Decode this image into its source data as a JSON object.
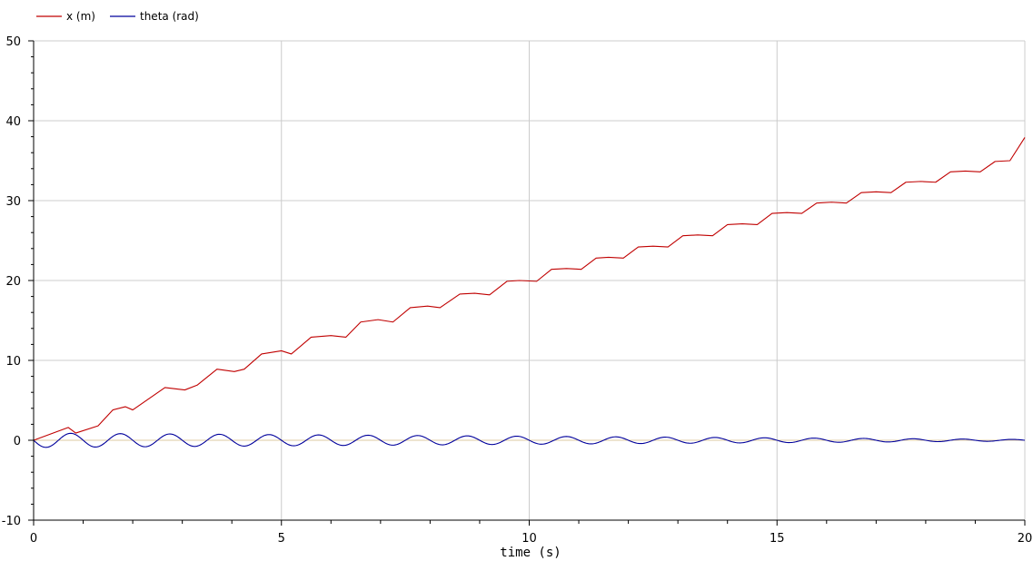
{
  "chart_data": {
    "type": "line",
    "title": "",
    "xlabel": "time (s)",
    "ylabel": "",
    "xlim": [
      0,
      20
    ],
    "ylim": [
      -10,
      50
    ],
    "x_ticks": [
      0,
      5,
      10,
      15,
      20
    ],
    "x_tick_labels": [
      "0",
      "5",
      "10",
      "15",
      "20"
    ],
    "y_ticks": [
      -10,
      0,
      10,
      20,
      30,
      40,
      50
    ],
    "y_tick_labels": [
      "-10",
      "0",
      "10",
      "20",
      "30",
      "40",
      "50"
    ],
    "grid": true,
    "legend_position": "top-left",
    "series": [
      {
        "name": "x (m)",
        "color": "#c00000",
        "x": [
          0,
          0.7,
          0.85,
          1.3,
          1.6,
          1.85,
          2.0,
          2.65,
          3.05,
          3.3,
          3.7,
          4.05,
          4.25,
          4.6,
          5.0,
          5.2,
          5.6,
          6.0,
          6.3,
          6.6,
          6.95,
          7.25,
          7.6,
          7.95,
          8.2,
          8.6,
          8.9,
          9.2,
          9.55,
          9.8,
          10.15,
          10.45,
          10.75,
          11.05,
          11.35,
          11.6,
          11.9,
          12.2,
          12.5,
          12.8,
          13.1,
          13.4,
          13.7,
          14.0,
          14.3,
          14.6,
          14.9,
          15.2,
          15.5,
          15.8,
          16.1,
          16.4,
          16.7,
          17.0,
          17.3,
          17.6,
          17.9,
          18.2,
          18.5,
          18.8,
          19.1,
          19.4,
          19.7,
          20.0
        ],
        "values": [
          0,
          1.6,
          0.9,
          1.8,
          3.8,
          4.2,
          3.8,
          6.6,
          6.3,
          6.9,
          8.9,
          8.6,
          8.9,
          10.8,
          11.2,
          10.8,
          12.9,
          13.1,
          12.9,
          14.8,
          15.1,
          14.8,
          16.6,
          16.8,
          16.6,
          18.3,
          18.4,
          18.2,
          19.9,
          20.0,
          19.9,
          21.4,
          21.5,
          21.4,
          22.8,
          22.9,
          22.8,
          24.2,
          24.3,
          24.2,
          25.6,
          25.7,
          25.6,
          27.0,
          27.1,
          27.0,
          28.4,
          28.5,
          28.4,
          29.7,
          29.8,
          29.7,
          31.0,
          31.1,
          31.0,
          32.3,
          32.4,
          32.3,
          33.6,
          33.7,
          33.6,
          34.9,
          35.0,
          37.9
        ]
      },
      {
        "name": "theta (rad)",
        "color": "#00009c",
        "amplitude_start": 0.9,
        "amplitude_end": 0.1,
        "period": 1.0
      }
    ]
  }
}
